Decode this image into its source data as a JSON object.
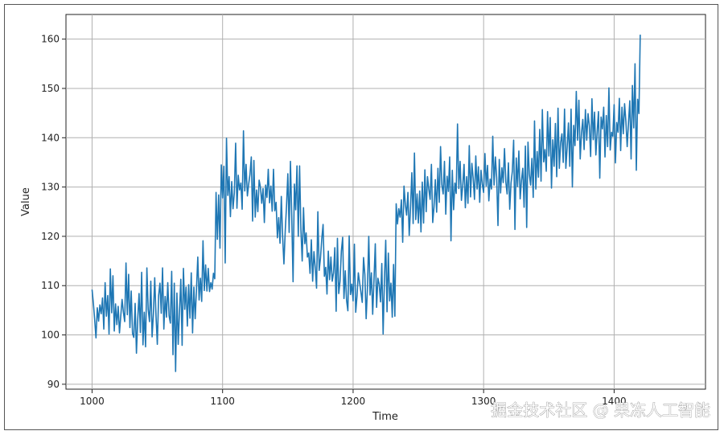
{
  "chart_data": {
    "type": "line",
    "title": "",
    "xlabel": "Time",
    "ylabel": "Value",
    "xlim": [
      980,
      1470
    ],
    "ylim": [
      89,
      165
    ],
    "xticks": [
      1000,
      1100,
      1200,
      1300,
      1400
    ],
    "yticks": [
      90,
      100,
      110,
      120,
      130,
      140,
      150,
      160
    ],
    "grid": true,
    "line_color": "#1f77b4",
    "x_start": 1000,
    "x_step": 1,
    "values": [
      109.2,
      106.4,
      103.1,
      99.4,
      105.5,
      102.8,
      106.1,
      104.3,
      107.5,
      101.2,
      110.6,
      103.8,
      108.0,
      100.2,
      113.4,
      104.5,
      112.0,
      100.8,
      106.3,
      102.1,
      105.8,
      100.4,
      103.9,
      107.2,
      104.6,
      102.7,
      114.6,
      104.1,
      112.3,
      101.5,
      108.9,
      100.3,
      99.5,
      106.4,
      96.3,
      103.2,
      108.4,
      100.5,
      112.7,
      98.0,
      104.6,
      97.6,
      113.6,
      105.2,
      102.7,
      110.9,
      99.6,
      104.3,
      111.6,
      103.8,
      98.1,
      108.0,
      110.5,
      104.4,
      113.6,
      101.2,
      107.8,
      103.6,
      110.6,
      103.9,
      102.4,
      112.9,
      96.0,
      110.5,
      92.6,
      108.5,
      98.1,
      104.9,
      111.3,
      97.9,
      113.5,
      105.2,
      109.7,
      101.8,
      110.2,
      103.4,
      112.6,
      100.4,
      109.7,
      103.3,
      109.2,
      115.8,
      107.1,
      111.5,
      106.8,
      119.1,
      109.0,
      114.2,
      108.9,
      113.5,
      108.8,
      110.6,
      109.3,
      112.5,
      111.4,
      128.9,
      119.4,
      128.4,
      117.6,
      134.5,
      127.8,
      134.2,
      114.6,
      139.9,
      128.3,
      132.1,
      124.0,
      131.1,
      125.6,
      128.8,
      138.9,
      125.7,
      132.4,
      129.4,
      130.8,
      125.5,
      141.4,
      129.2,
      134.6,
      128.2,
      130.6,
      132.6,
      136.1,
      123.1,
      135.4,
      123.9,
      129.4,
      125.0,
      131.4,
      130.0,
      126.7,
      129.7,
      122.8,
      130.4,
      127.9,
      133.6,
      126.8,
      130.2,
      125.1,
      133.6,
      125.2,
      126.9,
      119.7,
      123.8,
      118.6,
      128.1,
      119.9,
      114.4,
      121.1,
      126.2,
      132.7,
      120.8,
      135.2,
      124.0,
      110.8,
      130.6,
      125.4,
      134.3,
      120.0,
      134.3,
      121.4,
      115.0,
      125.8,
      118.5,
      120.7,
      115.8,
      116.6,
      112.5,
      119.3,
      110.9,
      116.9,
      113.6,
      109.5,
      125.0,
      113.1,
      115.6,
      119.5,
      122.4,
      111.9,
      113.7,
      108.3,
      117.0,
      111.2,
      115.8,
      110.9,
      112.6,
      117.7,
      104.8,
      119.6,
      108.4,
      110.9,
      117.0,
      119.8,
      107.4,
      113.0,
      107.0,
      104.9,
      120.1,
      108.2,
      110.3,
      106.9,
      118.4,
      104.6,
      107.9,
      112.6,
      110.6,
      108.7,
      106.6,
      115.7,
      112.3,
      103.3,
      109.6,
      120.0,
      108.1,
      112.6,
      104.2,
      111.2,
      118.5,
      105.6,
      111.5,
      110.3,
      106.7,
      114.5,
      100.2,
      111.1,
      119.2,
      104.7,
      116.6,
      106.9,
      110.5,
      103.6,
      114.3,
      103.8,
      126.6,
      122.5,
      125.6,
      123.9,
      127.4,
      118.8,
      130.2,
      126.5,
      124.3,
      128.9,
      120.2,
      125.8,
      132.9,
      122.6,
      136.9,
      123.4,
      128.6,
      122.7,
      129.2,
      120.9,
      131.0,
      122.7,
      133.5,
      125.0,
      132.1,
      129.6,
      127.5,
      134.6,
      122.8,
      126.0,
      131.5,
      124.9,
      133.8,
      126.9,
      138.2,
      130.4,
      128.6,
      135.2,
      124.5,
      132.2,
      129.1,
      136.1,
      119.1,
      133.4,
      125.4,
      130.8,
      128.7,
      142.8,
      129.7,
      135.2,
      127.3,
      130.3,
      134.6,
      125.8,
      132.1,
      126.7,
      138.4,
      128.0,
      134.8,
      131.8,
      127.5,
      136.3,
      129.6,
      134.1,
      126.9,
      133.4,
      130.5,
      128.9,
      136.8,
      130.2,
      134.4,
      127.2,
      131.6,
      129.6,
      140.3,
      130.4,
      136.1,
      131.9,
      122.2,
      135.6,
      128.8,
      133.9,
      130.9,
      137.8,
      131.1,
      128.6,
      134.9,
      125.5,
      130.8,
      133.2,
      139.5,
      121.4,
      135.9,
      130.1,
      137.3,
      127.6,
      131.3,
      133.8,
      125.9,
      138.3,
      121.8,
      139.1,
      132.6,
      130.4,
      135.8,
      127.9,
      143.4,
      129.6,
      137.2,
      132.0,
      141.7,
      131.2,
      145.7,
      135.1,
      137.6,
      133.2,
      145.3,
      136.3,
      144.1,
      129.8,
      139.6,
      134.2,
      142.9,
      132.1,
      146.0,
      133.8,
      139.0,
      140.8,
      135.0,
      145.8,
      133.8,
      138.1,
      143.0,
      134.2,
      145.8,
      130.0,
      142.5,
      138.4,
      149.4,
      139.5,
      147.6,
      135.7,
      141.0,
      143.7,
      137.6,
      145.7,
      139.5,
      144.9,
      142.4,
      136.2,
      147.9,
      139.6,
      145.2,
      136.5,
      141.2,
      145.3,
      131.8,
      144.2,
      141.8,
      146.2,
      136.1,
      144.5,
      138.2,
      150.1,
      137.5,
      141.1,
      140.3,
      146.7,
      134.9,
      143.1,
      141.1,
      148.0,
      137.4,
      146.2,
      140.8,
      146.9,
      143.3,
      138.2,
      143.1,
      147.5,
      135.7,
      150.6,
      142.0,
      155.0,
      133.4,
      147.8,
      144.9,
      160.9
    ]
  },
  "watermark": "掘金技术社区 @ 果冻人工智能"
}
